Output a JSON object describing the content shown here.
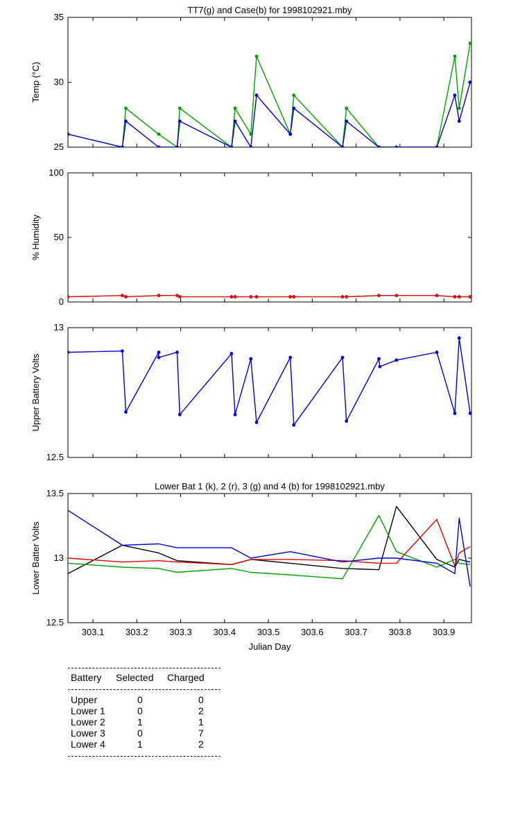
{
  "chart_data": [
    {
      "id": "temp",
      "type": "line",
      "title": "TT7(g) and Case(b) for 1998102921.mby",
      "ylabel": "Temp  (°C)",
      "xlabel": "",
      "xlim": [
        303.043,
        303.963
      ],
      "ylim": [
        25,
        35
      ],
      "yticks": [
        25,
        30,
        35
      ],
      "xticks": [
        303.1,
        303.2,
        303.3,
        303.4,
        303.5,
        303.6,
        303.7,
        303.8,
        303.9
      ],
      "show_xtick_labels": false,
      "markers": true,
      "grid": false,
      "series": [
        {
          "color": "#00a000",
          "x": [
            303.043,
            303.167,
            303.175,
            303.25,
            303.292,
            303.298,
            303.416,
            303.424,
            303.46,
            303.473,
            303.55,
            303.558,
            303.669,
            303.678,
            303.752,
            303.792,
            303.884,
            303.925,
            303.935,
            303.96
          ],
          "y": [
            26,
            25,
            28,
            26,
            25,
            28,
            25,
            28,
            26,
            32,
            26,
            29,
            25,
            28,
            25,
            25,
            25,
            32,
            28,
            33
          ]
        },
        {
          "color": "#0000d0",
          "x": [
            303.043,
            303.167,
            303.175,
            303.25,
            303.292,
            303.298,
            303.416,
            303.424,
            303.46,
            303.473,
            303.55,
            303.558,
            303.669,
            303.678,
            303.752,
            303.792,
            303.884,
            303.925,
            303.935,
            303.96
          ],
          "y": [
            26,
            25,
            27,
            25,
            25,
            27,
            25,
            27,
            25,
            29,
            26,
            28,
            25,
            27,
            25,
            25,
            25,
            29,
            27,
            30
          ]
        }
      ]
    },
    {
      "id": "humidity",
      "type": "line",
      "title": "",
      "ylabel": "% Humidity",
      "xlabel": "",
      "xlim": [
        303.043,
        303.963
      ],
      "ylim": [
        0,
        100
      ],
      "yticks": [
        0,
        50,
        100
      ],
      "xticks": [
        303.1,
        303.2,
        303.3,
        303.4,
        303.5,
        303.6,
        303.7,
        303.8,
        303.9
      ],
      "show_xtick_labels": false,
      "markers": true,
      "grid": false,
      "series": [
        {
          "color": "#e00000",
          "x": [
            303.043,
            303.167,
            303.175,
            303.25,
            303.292,
            303.298,
            303.416,
            303.424,
            303.46,
            303.473,
            303.55,
            303.558,
            303.669,
            303.678,
            303.752,
            303.792,
            303.884,
            303.925,
            303.935,
            303.96
          ],
          "y": [
            4,
            5,
            4,
            5,
            5,
            4,
            4,
            4,
            4,
            4,
            4,
            4,
            4,
            4,
            5,
            5,
            5,
            4,
            4,
            4
          ]
        }
      ]
    },
    {
      "id": "upper",
      "type": "line",
      "title": "",
      "ylabel": "Upper Battery Volts",
      "xlabel": "",
      "xlim": [
        303.043,
        303.963
      ],
      "ylim": [
        12.5,
        13
      ],
      "yticks": [
        12.5,
        13
      ],
      "xticks": [
        303.1,
        303.2,
        303.3,
        303.4,
        303.5,
        303.6,
        303.7,
        303.8,
        303.9
      ],
      "show_xtick_labels": false,
      "markers": true,
      "grid": false,
      "series": [
        {
          "color": "#0000d0",
          "x": [
            303.043,
            303.167,
            303.175,
            303.25,
            303.25,
            303.292,
            303.298,
            303.416,
            303.424,
            303.46,
            303.473,
            303.55,
            303.558,
            303.669,
            303.678,
            303.752,
            303.754,
            303.792,
            303.884,
            303.925,
            303.935,
            303.96
          ],
          "y": [
            12.905,
            12.91,
            12.675,
            12.905,
            12.885,
            12.905,
            12.665,
            12.9,
            12.665,
            12.88,
            12.635,
            12.885,
            12.625,
            12.885,
            12.64,
            12.88,
            12.85,
            12.875,
            12.905,
            12.67,
            12.96,
            12.67
          ]
        }
      ]
    },
    {
      "id": "lower",
      "type": "line",
      "title": "Lower Bat 1 (k), 2 (r), 3 (g) and 4 (b) for 1998102921.mby",
      "ylabel": "Lower Batter Volts",
      "xlabel": "Julian Day",
      "xlim": [
        303.043,
        303.963
      ],
      "ylim": [
        12.5,
        13.5
      ],
      "yticks": [
        12.5,
        13,
        13.5
      ],
      "xticks": [
        303.1,
        303.2,
        303.3,
        303.4,
        303.5,
        303.6,
        303.7,
        303.8,
        303.9
      ],
      "show_xtick_labels": true,
      "markers": false,
      "grid": false,
      "series": [
        {
          "color": "#000000",
          "x": [
            303.043,
            303.167,
            303.25,
            303.292,
            303.416,
            303.46,
            303.55,
            303.669,
            303.752,
            303.792,
            303.884,
            303.925,
            303.935,
            303.96
          ],
          "y": [
            12.88,
            13.1,
            13.04,
            12.98,
            12.95,
            12.99,
            12.96,
            12.92,
            12.91,
            13.4,
            12.99,
            12.93,
            12.99,
            12.97
          ]
        },
        {
          "color": "#e00000",
          "x": [
            303.043,
            303.167,
            303.25,
            303.292,
            303.416,
            303.46,
            303.55,
            303.669,
            303.752,
            303.792,
            303.884,
            303.925,
            303.935,
            303.96
          ],
          "y": [
            13.0,
            12.97,
            12.98,
            12.97,
            12.95,
            12.99,
            12.99,
            12.98,
            12.96,
            12.96,
            13.3,
            12.94,
            13.04,
            13.09
          ]
        },
        {
          "color": "#00a000",
          "x": [
            303.043,
            303.167,
            303.25,
            303.292,
            303.416,
            303.46,
            303.55,
            303.669,
            303.752,
            303.792,
            303.884,
            303.925,
            303.935,
            303.96
          ],
          "y": [
            12.96,
            12.93,
            12.92,
            12.89,
            12.92,
            12.89,
            12.87,
            12.84,
            13.33,
            13.05,
            12.93,
            12.99,
            12.96,
            12.95
          ]
        },
        {
          "color": "#0000d0",
          "x": [
            303.043,
            303.167,
            303.25,
            303.292,
            303.416,
            303.46,
            303.55,
            303.669,
            303.752,
            303.792,
            303.884,
            303.925,
            303.935,
            303.96
          ],
          "y": [
            13.37,
            13.1,
            13.11,
            13.08,
            13.08,
            13.0,
            13.05,
            12.97,
            13.0,
            13.0,
            12.96,
            12.88,
            13.31,
            12.78
          ]
        }
      ]
    }
  ],
  "battery_table": {
    "headers": [
      "Battery",
      "Selected",
      "Charged"
    ],
    "rows": [
      [
        "Upper",
        "0",
        "0"
      ],
      [
        "Lower 1",
        "0",
        "2"
      ],
      [
        "Lower 2",
        "1",
        "1"
      ],
      [
        "Lower 3",
        "0",
        "7"
      ],
      [
        "Lower 4",
        "1",
        "2"
      ]
    ]
  }
}
